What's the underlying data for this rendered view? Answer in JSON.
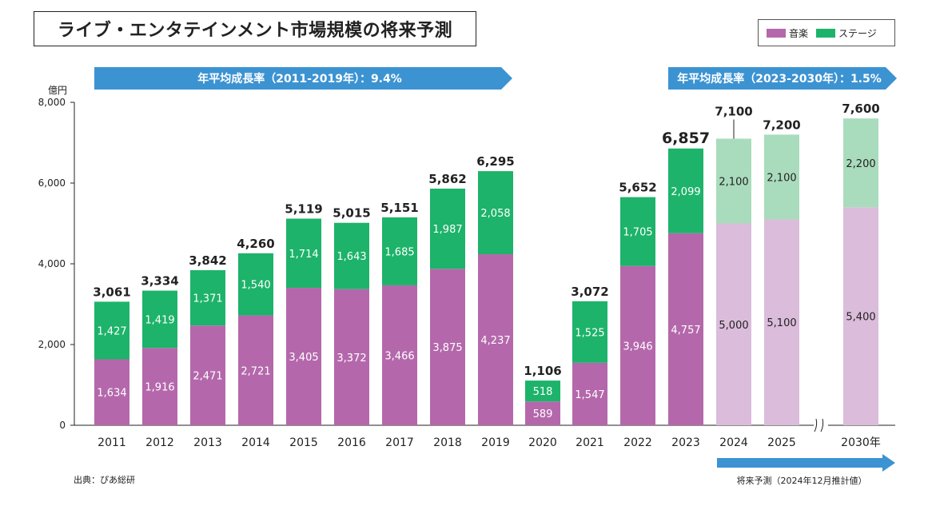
{
  "title": "ライブ・エンタテインメント市場規模の将来予測",
  "legend": [
    {
      "name": "音楽",
      "color": "#b468ab"
    },
    {
      "name": "ステージ",
      "color": "#1db36a"
    }
  ],
  "banners": [
    {
      "text": "年平均成長率（2011-2019年）：9.4%"
    },
    {
      "text": "年平均成長率（2023-2030年）：1.5%"
    }
  ],
  "source": "出典：ぴあ総研",
  "forecast_label": "将来予測（2024年12月推計値）",
  "chart_data": {
    "type": "bar",
    "stacked": true,
    "categories": [
      "2011",
      "2012",
      "2013",
      "2014",
      "2015",
      "2016",
      "2017",
      "2018",
      "2019",
      "2020",
      "2021",
      "2022",
      "2023",
      "2024",
      "2025",
      "2030年"
    ],
    "series": [
      {
        "name": "音楽",
        "values": [
          1634,
          1916,
          2471,
          2721,
          3405,
          3372,
          3466,
          3875,
          4237,
          589,
          1547,
          3946,
          4757,
          5000,
          5100,
          5400
        ]
      },
      {
        "name": "ステージ",
        "values": [
          1427,
          1419,
          1371,
          1540,
          1714,
          1643,
          1685,
          1987,
          2058,
          518,
          1525,
          1705,
          2099,
          2100,
          2100,
          2200
        ]
      }
    ],
    "value_labels": {
      "music": [
        "1,634",
        "1,916",
        "2,471",
        "2,721",
        "3,405",
        "3,372",
        "3,466",
        "3,875",
        "4,237",
        "589",
        "1,547",
        "3,946",
        "4,757",
        "5,000",
        "5,100",
        "5,400"
      ],
      "stage": [
        "1,427",
        "1,419",
        "1,371",
        "1,540",
        "1,714",
        "1,643",
        "1,685",
        "1,987",
        "2,058",
        "518",
        "1,525",
        "1,705",
        "2,099",
        "2,100",
        "2,100",
        "2,200"
      ]
    },
    "totals": [
      "3,061",
      "3,334",
      "3,842",
      "4,260",
      "5,119",
      "5,015",
      "5,151",
      "5,862",
      "6,295",
      "1,106",
      "3,072",
      "5,652",
      "6,857",
      "7,100",
      "7,200",
      "7,600"
    ],
    "forecast_from_index": 13,
    "forecast_colors": {
      "music": "#dbbcdb",
      "stage": "#a9dcbd"
    },
    "ylabel": "億円",
    "ylim": [
      0,
      8000
    ],
    "yticks": [
      0,
      2000,
      4000,
      6000,
      8000
    ],
    "ytick_labels": [
      "0",
      "2,000",
      "4,000",
      "6,000",
      "8,000"
    ],
    "grid": false
  }
}
